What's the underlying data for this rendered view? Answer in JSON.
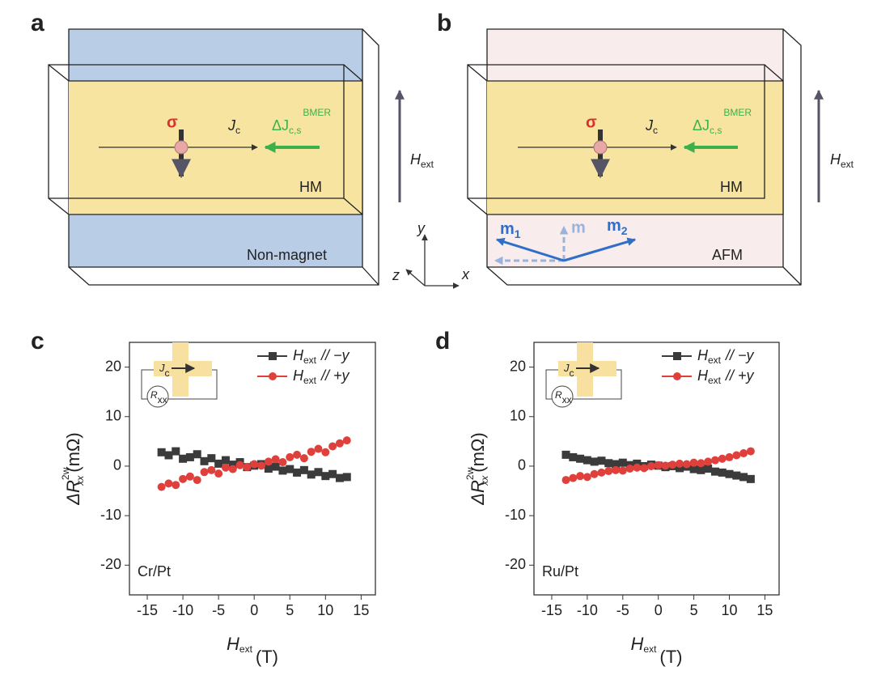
{
  "panels": {
    "a": {
      "label": "a",
      "spin": "σ",
      "current": {
        "base": "J",
        "sub": "c"
      },
      "bmer": {
        "base": "ΔJ",
        "sub": "c,s",
        "sup": "BMER"
      },
      "layer_top": "HM",
      "layer_bottom": "Non-magnet",
      "field": {
        "base": "H",
        "sub": "ext"
      }
    },
    "b": {
      "label": "b",
      "spin": "σ",
      "current": {
        "base": "J",
        "sub": "c"
      },
      "bmer": {
        "base": "ΔJ",
        "sub": "c,s",
        "sup": "BMER"
      },
      "layer_top": "HM",
      "layer_bottom": "AFM",
      "field": {
        "base": "H",
        "sub": "ext"
      },
      "m1": {
        "base": "m",
        "sub": "1"
      },
      "m": "m",
      "m2": {
        "base": "m",
        "sub": "2"
      }
    },
    "axes": {
      "y": "y",
      "z": "z",
      "x": "x"
    }
  },
  "chart_data": [
    {
      "type": "scatter",
      "panel_label": "c",
      "annotation": "Cr/Pt",
      "inset": {
        "current": {
          "base": "J",
          "sub": "c"
        },
        "resistance": {
          "base": "R",
          "sub": "xx"
        }
      },
      "xlabel": {
        "base": "H",
        "sub": "ext",
        "unit": "(T)"
      },
      "ylabel": {
        "base": "ΔR",
        "sup": "2w",
        "sub": "xx",
        "unit": "(mΩ)"
      },
      "xlim": [
        -17.5,
        17
      ],
      "ylim": [
        -26,
        25
      ],
      "xticks": [
        -15,
        -10,
        -5,
        0,
        5,
        10,
        15
      ],
      "yticks": [
        -20,
        -10,
        0,
        10,
        20
      ],
      "x": [
        -13,
        -12,
        -11,
        -10,
        -9,
        -8,
        -7,
        -6,
        -5,
        -4,
        -3,
        -2,
        -1,
        0,
        1,
        2,
        3,
        4,
        5,
        6,
        7,
        8,
        9,
        10,
        11,
        12,
        13
      ],
      "series": [
        {
          "name": {
            "base": "H",
            "sub": "ext",
            "rest": "// −y"
          },
          "color": "#3b3b3b",
          "marker": "square",
          "values": [
            2.8,
            2.2,
            3.0,
            1.5,
            1.8,
            2.4,
            1.0,
            1.6,
            0.5,
            1.2,
            0.3,
            0.8,
            -0.2,
            0.1,
            0.4,
            -0.5,
            -0.1,
            -0.9,
            -0.6,
            -1.3,
            -0.8,
            -1.7,
            -1.2,
            -2.0,
            -1.6,
            -2.4,
            -2.2
          ]
        },
        {
          "name": {
            "base": "H",
            "sub": "ext",
            "rest": "// +y"
          },
          "color": "#e0403c",
          "marker": "circle",
          "values": [
            -4.2,
            -3.5,
            -3.8,
            -2.6,
            -2.1,
            -2.8,
            -1.2,
            -0.8,
            -1.5,
            -0.3,
            -0.6,
            0.2,
            -0.2,
            0.4,
            0.1,
            0.9,
            1.4,
            0.8,
            1.8,
            2.3,
            1.6,
            2.9,
            3.5,
            2.8,
            4.0,
            4.6,
            5.2
          ]
        }
      ]
    },
    {
      "type": "scatter",
      "panel_label": "d",
      "annotation": "Ru/Pt",
      "inset": {
        "current": {
          "base": "J",
          "sub": "c"
        },
        "resistance": {
          "base": "R",
          "sub": "xx"
        }
      },
      "xlabel": {
        "base": "H",
        "sub": "ext",
        "unit": "(T)"
      },
      "ylabel": {
        "base": "ΔR",
        "sup": "2w",
        "sub": "xx",
        "unit": "(mΩ)"
      },
      "xlim": [
        -17.5,
        17
      ],
      "ylim": [
        -26,
        25
      ],
      "xticks": [
        -15,
        -10,
        -5,
        0,
        5,
        10,
        15
      ],
      "yticks": [
        -20,
        -10,
        0,
        10,
        20
      ],
      "x": [
        -13,
        -12,
        -11,
        -10,
        -9,
        -8,
        -7,
        -6,
        -5,
        -4,
        -3,
        -2,
        -1,
        0,
        1,
        2,
        3,
        4,
        5,
        6,
        7,
        8,
        9,
        10,
        11,
        12,
        13
      ],
      "series": [
        {
          "name": {
            "base": "H",
            "sub": "ext",
            "rest": "// −y"
          },
          "color": "#3b3b3b",
          "marker": "square",
          "values": [
            2.3,
            1.8,
            1.5,
            1.2,
            0.9,
            1.1,
            0.6,
            0.4,
            0.7,
            0.2,
            0.5,
            0.0,
            0.3,
            0.1,
            -0.2,
            0.0,
            -0.4,
            -0.1,
            -0.6,
            -0.8,
            -0.5,
            -1.1,
            -1.3,
            -1.6,
            -1.9,
            -2.2,
            -2.6
          ]
        },
        {
          "name": {
            "base": "H",
            "sub": "ext",
            "rest": "// +y"
          },
          "color": "#e0403c",
          "marker": "circle",
          "values": [
            -2.8,
            -2.4,
            -2.0,
            -2.2,
            -1.6,
            -1.3,
            -1.0,
            -0.8,
            -0.9,
            -0.5,
            -0.3,
            -0.4,
            0.0,
            0.2,
            0.1,
            0.3,
            0.5,
            0.4,
            0.7,
            0.6,
            0.9,
            1.2,
            1.5,
            1.8,
            2.2,
            2.6,
            3.0
          ]
        }
      ]
    }
  ]
}
